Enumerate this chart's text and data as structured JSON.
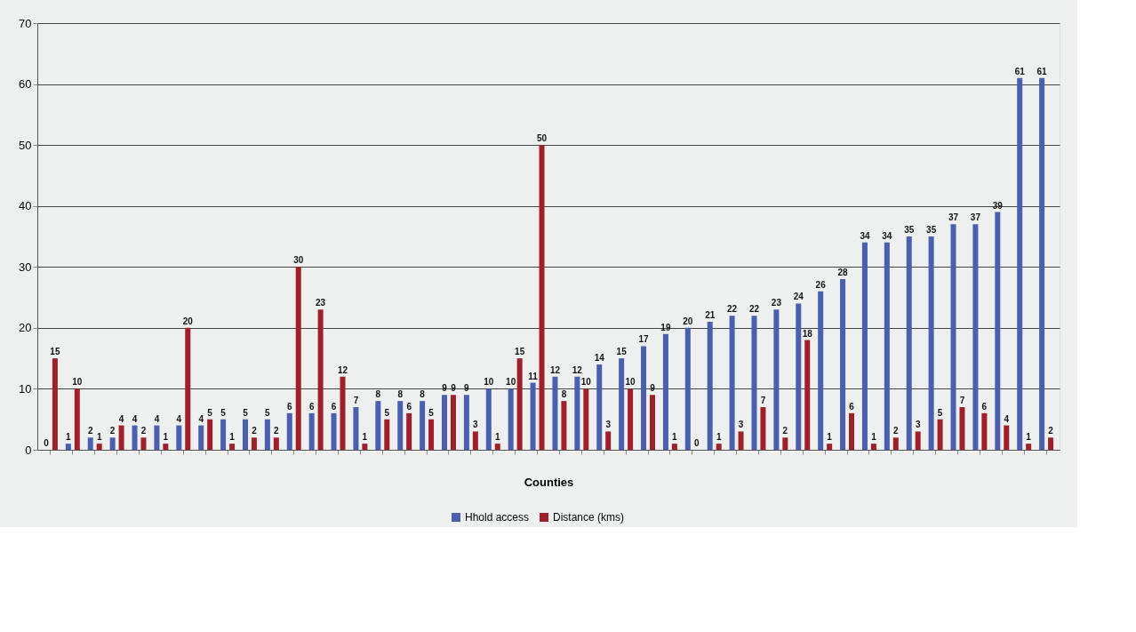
{
  "chart_data": {
    "type": "bar",
    "xlabel": "Counties",
    "categories": [
      null,
      null,
      null,
      null,
      null,
      null,
      null,
      null,
      null,
      null,
      null,
      null,
      null,
      null,
      null,
      null,
      null,
      null,
      null,
      null,
      null,
      null,
      null,
      null,
      null,
      null,
      null,
      null,
      null,
      null,
      null,
      null,
      null,
      null,
      null,
      null,
      null,
      null,
      null,
      null,
      null,
      null,
      null,
      null,
      null,
      null
    ],
    "series": [
      {
        "name": "Hhold access",
        "color": "#4a5fb0",
        "values": [
          0,
          1,
          2,
          2,
          4,
          4,
          4,
          4,
          5,
          5,
          5,
          6,
          6,
          6,
          7,
          8,
          8,
          8,
          9,
          9,
          10,
          10,
          11,
          12,
          12,
          14,
          15,
          17,
          19,
          20,
          21,
          22,
          22,
          23,
          24,
          26,
          28,
          34,
          34,
          35,
          35,
          37,
          37,
          39,
          61,
          61
        ]
      },
      {
        "name": "Distance (kms)",
        "color": "#a0202a",
        "values": [
          15,
          10,
          1,
          4,
          2,
          1,
          20,
          5,
          1,
          2,
          2,
          30,
          23,
          12,
          1,
          5,
          6,
          5,
          9,
          3,
          1,
          15,
          50,
          8,
          10,
          3,
          10,
          9,
          1,
          0,
          1,
          3,
          7,
          2,
          18,
          1,
          6,
          1,
          2,
          3,
          5,
          7,
          6,
          4,
          1,
          2
        ]
      }
    ],
    "ylim": [
      0,
      70
    ],
    "yticks": [
      0,
      10,
      20,
      30,
      40,
      50,
      60,
      70
    ],
    "grid": "y",
    "legend": "bottom",
    "data_labels": true,
    "tick_labels": "y"
  }
}
